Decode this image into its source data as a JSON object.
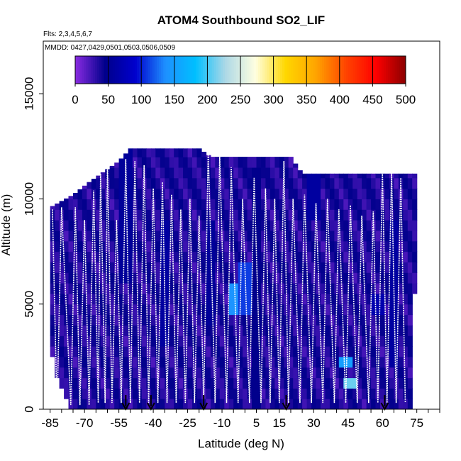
{
  "chart_data": {
    "type": "heatmap",
    "title": "ATOM4 Southbound SO2_LIF",
    "subtitle_flights": "Flts: 2,3,4,5,6,7",
    "subtitle_dates": "MMDD: 0427,0429,0501,0503,0506,0509",
    "xlabel": "Latitude (deg N)",
    "ylabel": "Altitude (m)",
    "xlim": [
      -88,
      85
    ],
    "ylim": [
      0,
      17500
    ],
    "x_ticks": [
      -85,
      -70,
      -55,
      -40,
      -25,
      -10,
      5,
      15,
      30,
      45,
      60,
      75
    ],
    "x_tick_labels": [
      "-85",
      "-70",
      "-55",
      "-40",
      "-25",
      "-10",
      "5",
      "15",
      "30",
      "45",
      "60",
      "75"
    ],
    "y_ticks": [
      0,
      5000,
      10000,
      15000
    ],
    "y_tick_labels": [
      "0",
      "5000",
      "10000",
      "15000"
    ],
    "colorbar": {
      "min": 0,
      "max": 500,
      "ticks": [
        0,
        50,
        100,
        150,
        200,
        250,
        300,
        350,
        400,
        450,
        500
      ],
      "tick_labels": [
        "0",
        "50",
        "100",
        "150",
        "200",
        "250",
        "300",
        "350",
        "400",
        "450",
        "500"
      ],
      "colors": [
        "#8a2be2",
        "#00008b",
        "#0000cd",
        "#1e90ff",
        "#00bfff",
        "#add8e6",
        "#ffffe0",
        "#ffd700",
        "#ffa500",
        "#ff4500",
        "#ff0000",
        "#8b0000"
      ]
    },
    "grid": false,
    "background_value": 20,
    "envelope_top": [
      [
        -85,
        9600
      ],
      [
        -75,
        10200
      ],
      [
        -68,
        10800
      ],
      [
        -55,
        11800
      ],
      [
        -50,
        12400
      ],
      [
        -20,
        12400
      ],
      [
        -15,
        12000
      ],
      [
        20,
        12000
      ],
      [
        25,
        11200
      ],
      [
        72,
        11200
      ]
    ],
    "envelope_bottom": [
      [
        -85,
        3000
      ],
      [
        -80,
        1000
      ],
      [
        -76,
        0
      ],
      [
        72,
        0
      ],
      [
        73,
        2000
      ],
      [
        74,
        5500
      ]
    ],
    "enhanced_cells": [
      {
        "lat": -52,
        "alt_range": [
          6000,
          12400
        ],
        "value": 55
      },
      {
        "lat": -35,
        "alt_range": [
          3000,
          9000
        ],
        "value": 60
      },
      {
        "lat": -15,
        "alt_range": [
          4000,
          9000
        ],
        "value": 55
      },
      {
        "lat": -5,
        "alt_range": [
          4500,
          6000
        ],
        "value": 140
      },
      {
        "lat": 0,
        "alt_range": [
          4500,
          7000
        ],
        "value": 110
      },
      {
        "lat": 5,
        "alt_range": [
          0,
          11500
        ],
        "value": 45
      },
      {
        "lat": 30,
        "alt_range": [
          9000,
          12000
        ],
        "value": 60
      },
      {
        "lat": 44,
        "alt_range": [
          2000,
          2600
        ],
        "value": 150
      },
      {
        "lat": 46,
        "alt_range": [
          800,
          1400
        ],
        "value": 210
      },
      {
        "lat": 58,
        "alt_range": [
          4500,
          5500
        ],
        "value": 70
      },
      {
        "lat": 65,
        "alt_range": [
          2000,
          9000
        ],
        "value": 60
      }
    ],
    "flight_profile_turns": [
      [
        -84,
        9500
      ],
      [
        -82,
        0
      ],
      [
        -80,
        9600
      ],
      [
        -76,
        200
      ],
      [
        -74,
        9600
      ],
      [
        -72,
        200
      ],
      [
        -70,
        9000
      ],
      [
        -68,
        200
      ],
      [
        -66,
        10400
      ],
      [
        -64,
        300
      ],
      [
        -63,
        11200
      ],
      [
        -61,
        300
      ],
      [
        -60,
        11700
      ],
      [
        -58,
        300
      ],
      [
        -56,
        9000
      ],
      [
        -54,
        300
      ],
      [
        -52,
        11900
      ],
      [
        -50,
        300
      ],
      [
        -48,
        11800
      ],
      [
        -46,
        300
      ],
      [
        -44,
        11600
      ],
      [
        -42,
        300
      ],
      [
        -40,
        10500
      ],
      [
        -38,
        300
      ],
      [
        -36,
        10800
      ],
      [
        -34,
        300
      ],
      [
        -32,
        10200
      ],
      [
        -30,
        300
      ],
      [
        -28,
        9500
      ],
      [
        -26,
        300
      ],
      [
        -24,
        10000
      ],
      [
        -22,
        300
      ],
      [
        -20,
        9200
      ],
      [
        -18,
        300
      ],
      [
        -16,
        12300
      ],
      [
        -13,
        300
      ],
      [
        -11,
        12000
      ],
      [
        -8,
        300
      ],
      [
        -6,
        11500
      ],
      [
        -3,
        300
      ],
      [
        -1,
        10000
      ],
      [
        2,
        300
      ],
      [
        4,
        11000
      ],
      [
        7,
        300
      ],
      [
        9,
        10500
      ],
      [
        11,
        300
      ],
      [
        13,
        10000
      ],
      [
        15,
        300
      ],
      [
        17,
        11800
      ],
      [
        19,
        300
      ],
      [
        21,
        10000
      ],
      [
        24,
        300
      ],
      [
        26,
        10200
      ],
      [
        29,
        300
      ],
      [
        31,
        9800
      ],
      [
        34,
        300
      ],
      [
        36,
        10000
      ],
      [
        39,
        300
      ],
      [
        41,
        9500
      ],
      [
        44,
        300
      ],
      [
        46,
        9700
      ],
      [
        49,
        300
      ],
      [
        51,
        9200
      ],
      [
        54,
        300
      ],
      [
        56,
        9400
      ],
      [
        58,
        300
      ],
      [
        60,
        11300
      ],
      [
        62,
        300
      ],
      [
        64,
        11300
      ],
      [
        66,
        300
      ],
      [
        68,
        11000
      ],
      [
        70,
        300
      ]
    ],
    "arrow_markers_lat": [
      -52,
      -41,
      -18,
      18,
      61
    ]
  }
}
